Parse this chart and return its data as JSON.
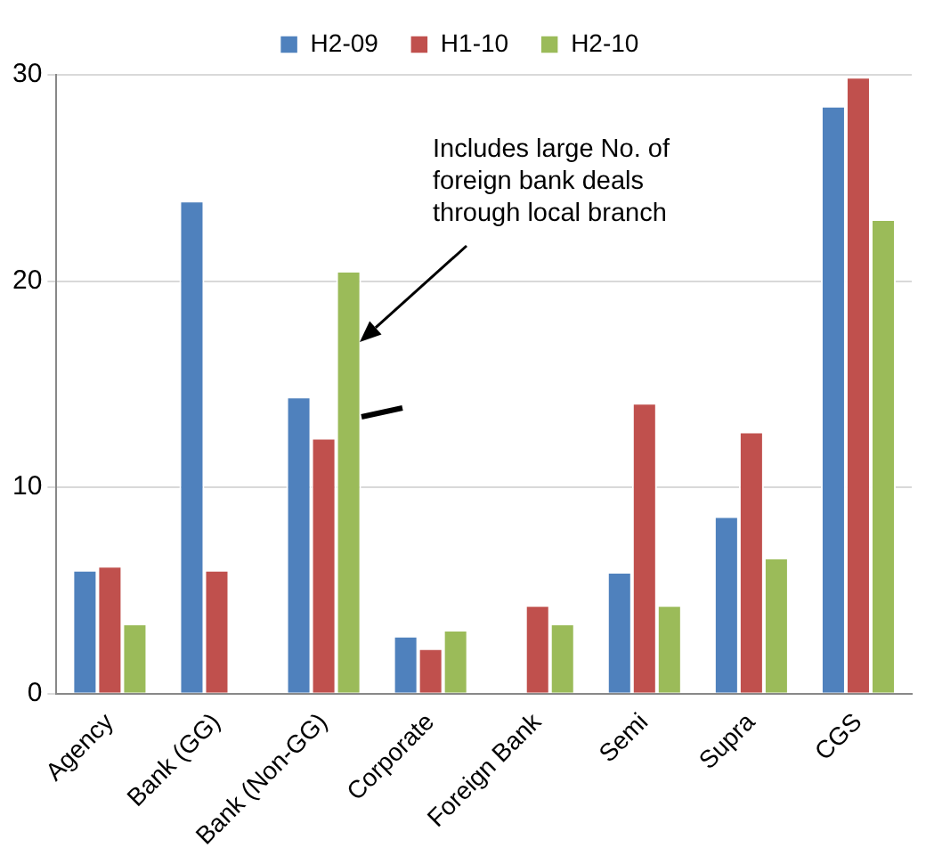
{
  "chart_data": {
    "type": "bar",
    "categories": [
      "Agency",
      "Bank (GG)",
      "Bank (Non-GG)",
      "Corporate",
      "Foreign Bank",
      "Semi",
      "Supra",
      "CGS"
    ],
    "series": [
      {
        "name": "H2-09",
        "color": "#4f81bd",
        "values": [
          6.0,
          23.9,
          14.4,
          2.8,
          null,
          5.9,
          8.6,
          28.5
        ]
      },
      {
        "name": "H1-10",
        "color": "#c0504d",
        "values": [
          6.2,
          6.0,
          12.4,
          2.2,
          4.3,
          14.1,
          12.7,
          29.9
        ]
      },
      {
        "name": "H2-10",
        "color": "#9bbb59",
        "values": [
          3.4,
          null,
          20.5,
          3.1,
          3.4,
          4.3,
          6.6,
          23.0
        ]
      }
    ],
    "ylim": [
      0,
      30
    ],
    "yticks": [
      0,
      10,
      20,
      30
    ],
    "grid": "y",
    "legend": "top",
    "annotations": [
      "Includes large No. of\nforeign bank deals\nthrough local branch"
    ]
  }
}
